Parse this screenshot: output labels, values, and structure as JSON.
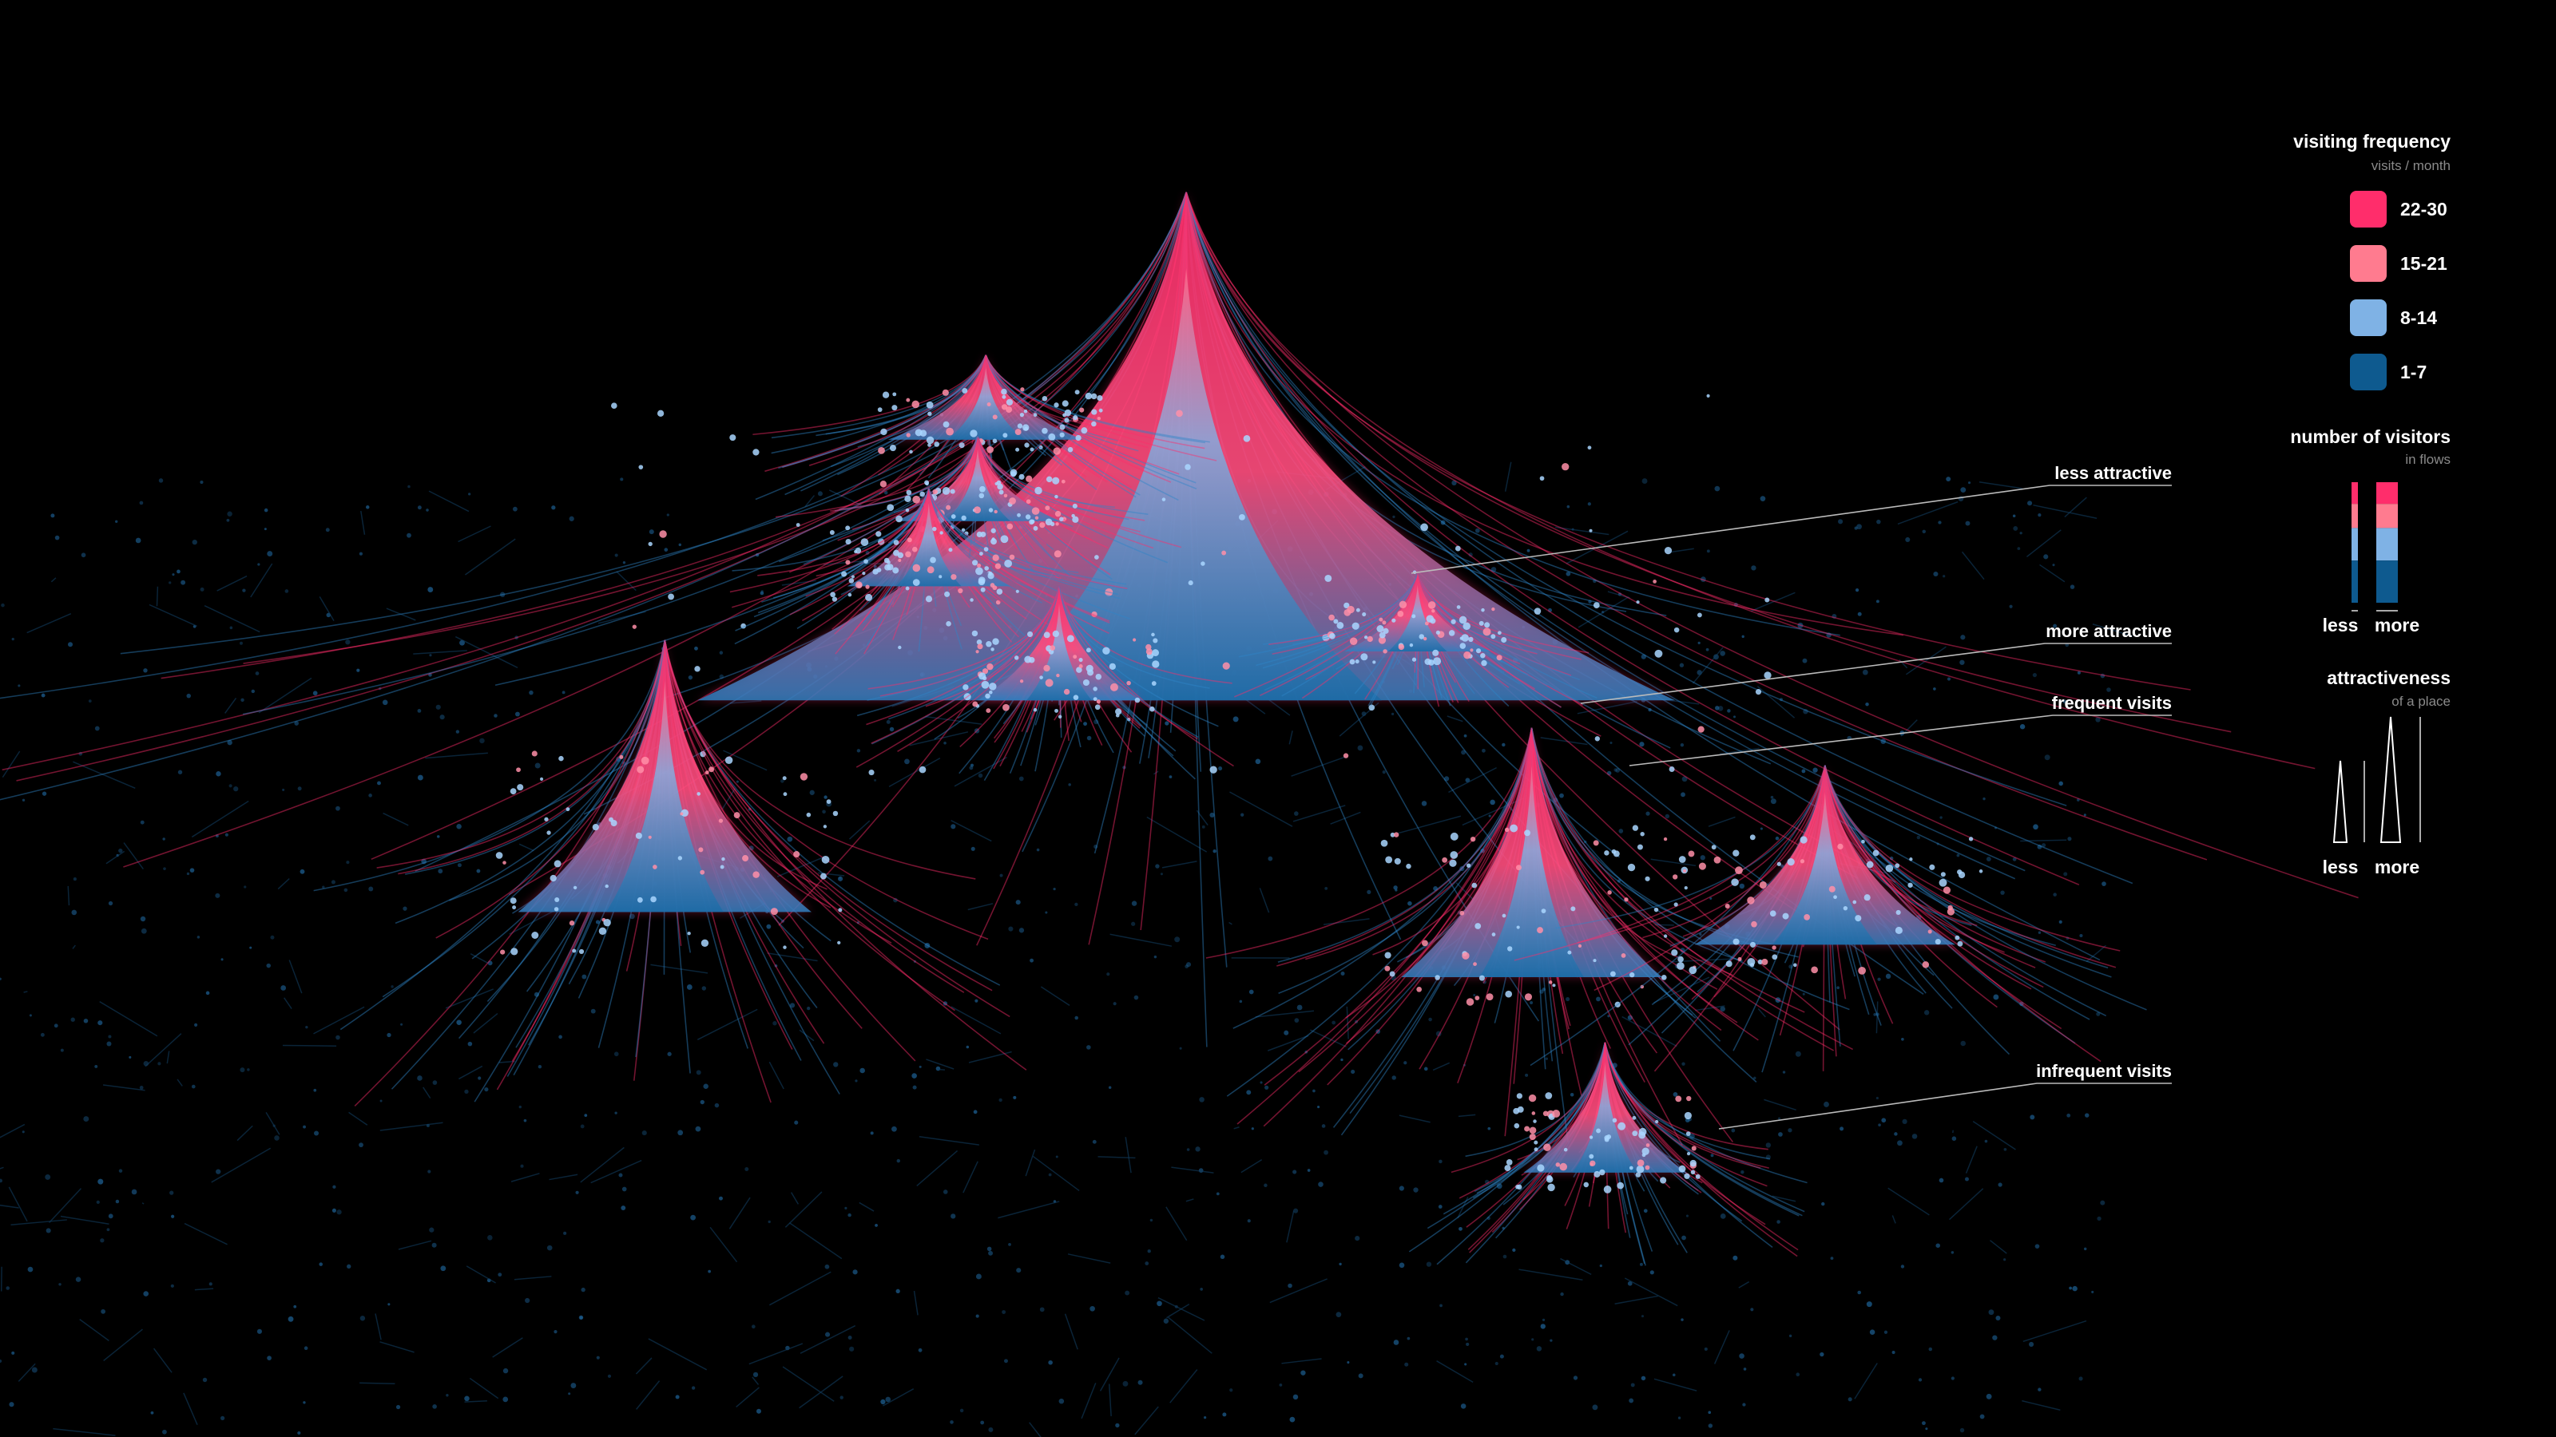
{
  "legend": {
    "visiting_frequency": {
      "title": "visiting frequency",
      "subtitle": "visits / month",
      "items": [
        {
          "label": "22-30",
          "color": "#ff2d6b"
        },
        {
          "label": "15-21",
          "color": "#ff7b8f"
        },
        {
          "label": "8-14",
          "color": "#7fb2e5"
        },
        {
          "label": "1-7",
          "color": "#0e5a8f"
        }
      ]
    },
    "number_of_visitors": {
      "title": "number of visitors",
      "subtitle": "in flows",
      "less": "less",
      "more": "more"
    },
    "attractiveness": {
      "title": "attractiveness",
      "subtitle": "of a place",
      "less": "less",
      "more": "more"
    }
  },
  "annotations": [
    "less attractive",
    "more attractive",
    "frequent visits",
    "infrequent visits"
  ]
}
